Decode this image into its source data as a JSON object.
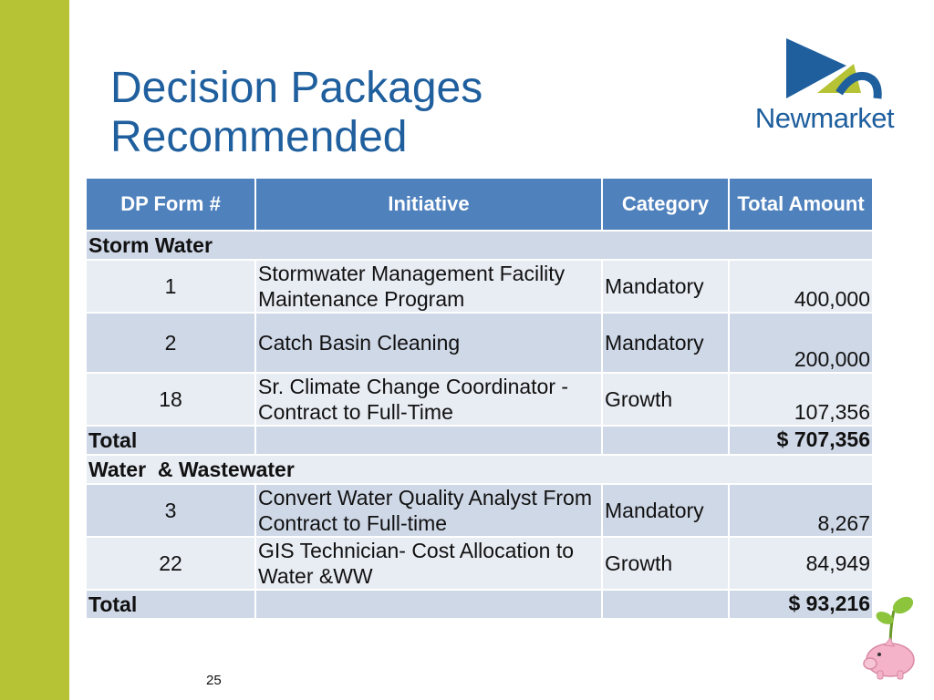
{
  "slide": {
    "title_line1": "Decision Packages",
    "title_line2": "Recommended",
    "logo_text": "Newmarket",
    "page_number": "25"
  },
  "table": {
    "headers": {
      "form": "DP Form #",
      "initiative": "Initiative",
      "category": "Category",
      "amount": "Total Amount"
    },
    "sections": [
      {
        "name": "Storm Water",
        "rows": [
          {
            "form": "1",
            "initiative": "Stormwater Management Facility Maintenance Program",
            "category": "Mandatory",
            "amount": "400,000"
          },
          {
            "form": "2",
            "initiative": "Catch Basin Cleaning",
            "category": "Mandatory",
            "amount": "200,000"
          },
          {
            "form": "18",
            "initiative": "Sr. Climate Change Coordinator - Contract to Full-Time",
            "category": "Growth",
            "amount": "107,356"
          }
        ],
        "total_label": "Total",
        "total_amount": "$ 707,356"
      },
      {
        "name": "Water  & Wastewater",
        "rows": [
          {
            "form": "3",
            "initiative": "Convert Water Quality Analyst From Contract to Full-time",
            "category": "Mandatory",
            "amount": "8,267"
          },
          {
            "form": "22",
            "initiative": "GIS Technician- Cost Allocation to Water &WW",
            "category": "Growth",
            "amount": "84,949"
          }
        ],
        "total_label": "Total",
        "total_amount": "$ 93,216"
      }
    ]
  },
  "colors": {
    "accent_bar": "#b5c334",
    "title": "#1f5f9e",
    "header_bg": "#4f81bd",
    "row_dark": "#cfd8e7",
    "row_light": "#e8ecf3"
  },
  "icons": [
    "newmarket-logo-icon",
    "piggy-bank-sprout-icon"
  ]
}
